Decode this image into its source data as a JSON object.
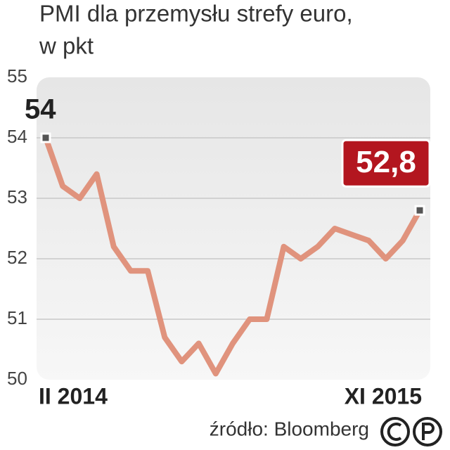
{
  "chart_data": {
    "type": "line",
    "title": "PMI dla przemysłu strefy euro,",
    "subtitle": "w pkt",
    "source": "źródło: Bloomberg",
    "categories": [
      "II 2014",
      null,
      null,
      null,
      null,
      null,
      null,
      null,
      null,
      null,
      null,
      null,
      null,
      null,
      null,
      null,
      null,
      null,
      null,
      null,
      null,
      null,
      "XI 2015"
    ],
    "series": [
      {
        "name": "PMI",
        "color": "#e0937d",
        "values": [
          54.0,
          53.2,
          53.0,
          53.4,
          52.2,
          51.8,
          51.8,
          50.7,
          50.3,
          50.6,
          50.1,
          50.6,
          51.0,
          51.0,
          52.2,
          52.0,
          52.2,
          52.5,
          52.4,
          52.3,
          52.0,
          52.3,
          52.8
        ],
        "value_labels": [
          "54",
          null,
          null,
          null,
          null,
          null,
          null,
          null,
          null,
          null,
          null,
          null,
          null,
          null,
          null,
          null,
          null,
          null,
          null,
          null,
          null,
          null,
          "52,8"
        ]
      }
    ],
    "ylim": [
      50,
      55
    ],
    "yticks": [
      50,
      51,
      52,
      53,
      54,
      55
    ],
    "grid": true
  }
}
